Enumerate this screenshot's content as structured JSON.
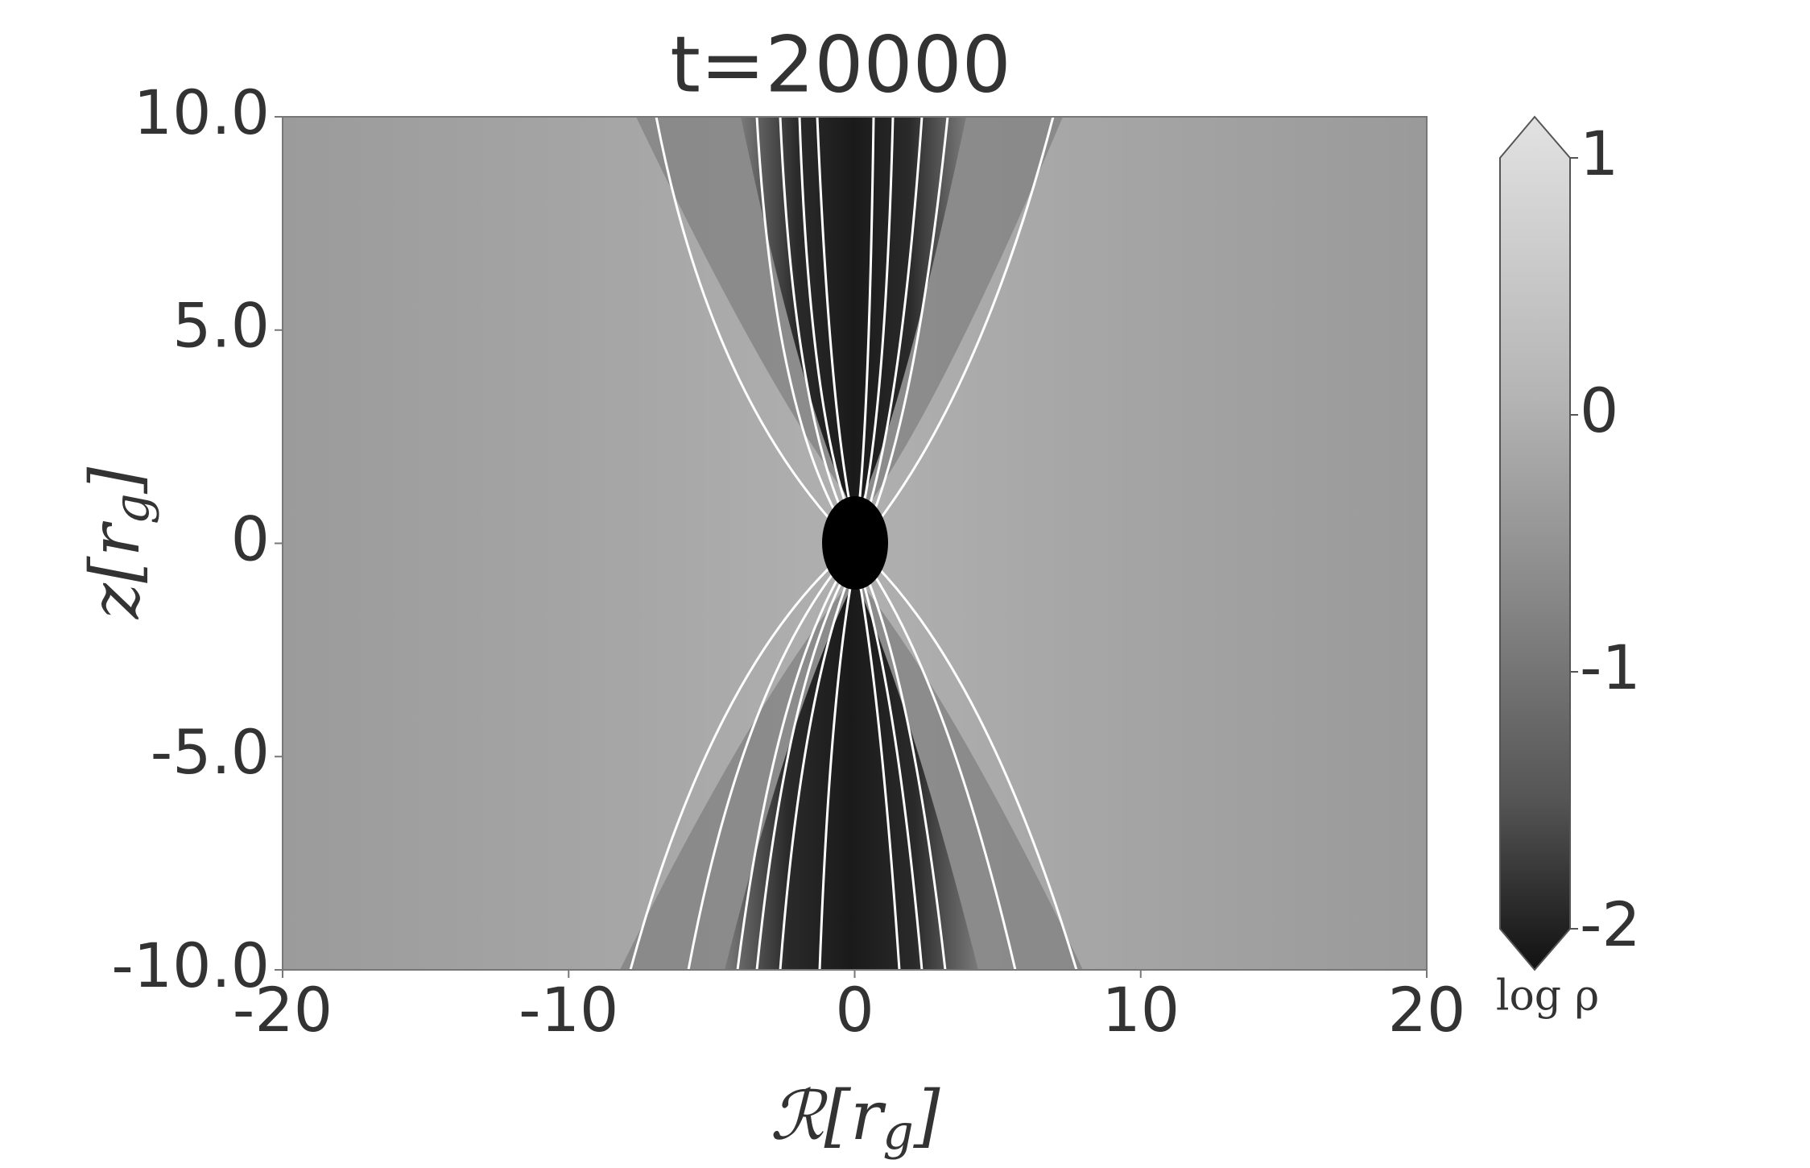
{
  "chart_data": {
    "type": "density-map",
    "title": "t=20000",
    "xlabel": [
      "ℛ[r",
      "g",
      "]"
    ],
    "ylabel": [
      "z[r",
      "g",
      "]"
    ],
    "xlim": [
      -20,
      20
    ],
    "xticks": [
      -20,
      -10,
      0,
      10,
      20
    ],
    "ylim": [
      -10,
      10
    ],
    "yticks": [
      {
        "value": 10,
        "label": "10.0"
      },
      {
        "value": 5,
        "label": "5.0"
      },
      0,
      {
        "value": -5,
        "label": "-5.0"
      },
      {
        "value": -10,
        "label": "-10.0"
      }
    ],
    "colorbar": {
      "label": "log ρ",
      "lim": [
        -2,
        1
      ],
      "ticks": [
        -2,
        -1,
        0,
        1
      ]
    }
  }
}
